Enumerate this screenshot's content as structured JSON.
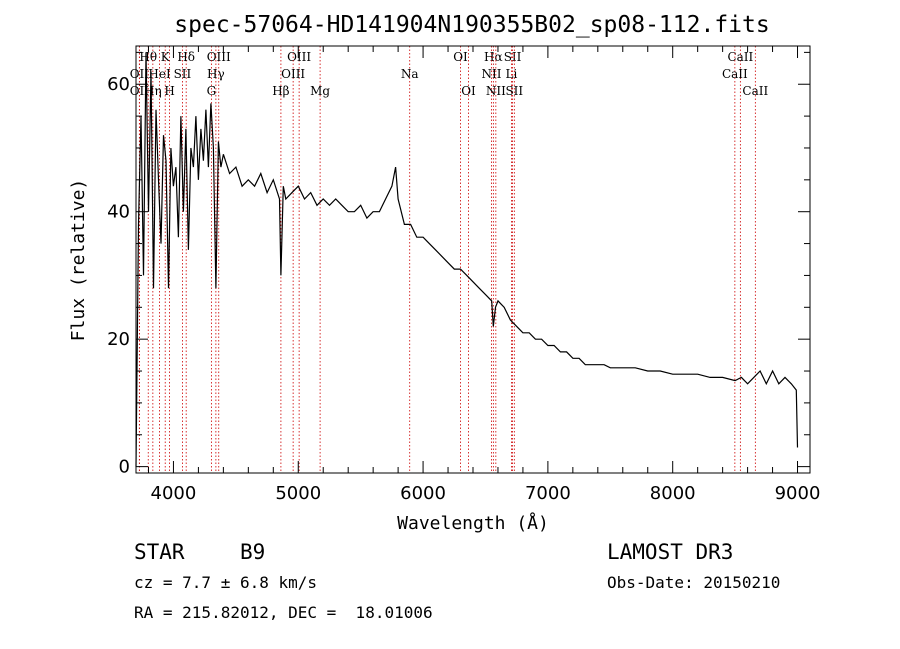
{
  "chart_data": {
    "type": "line",
    "title": "spec-57064-HD141904N190355B02_sp08-112.fits",
    "xlabel": "Wavelength (Å)",
    "ylabel": "Flux (relative)",
    "xlim": [
      3700,
      9100
    ],
    "ylim": [
      -1,
      66
    ],
    "xticks": [
      4000,
      5000,
      6000,
      7000,
      8000,
      9000
    ],
    "yticks": [
      0,
      20,
      40,
      60
    ],
    "series": [
      {
        "name": "spectrum",
        "x": [
          3700,
          3720,
          3740,
          3760,
          3780,
          3800,
          3820,
          3840,
          3860,
          3880,
          3900,
          3920,
          3940,
          3960,
          3980,
          4000,
          4020,
          4040,
          4060,
          4080,
          4100,
          4120,
          4140,
          4160,
          4180,
          4200,
          4220,
          4240,
          4260,
          4280,
          4300,
          4320,
          4340,
          4360,
          4380,
          4400,
          4450,
          4500,
          4550,
          4600,
          4650,
          4700,
          4750,
          4800,
          4850,
          4861,
          4880,
          4900,
          4950,
          5000,
          5050,
          5100,
          5150,
          5200,
          5250,
          5300,
          5350,
          5400,
          5450,
          5500,
          5550,
          5600,
          5650,
          5700,
          5750,
          5780,
          5800,
          5850,
          5900,
          5950,
          6000,
          6050,
          6100,
          6150,
          6200,
          6250,
          6300,
          6350,
          6400,
          6450,
          6500,
          6550,
          6563,
          6580,
          6600,
          6650,
          6700,
          6750,
          6800,
          6850,
          6900,
          6950,
          7000,
          7050,
          7100,
          7150,
          7200,
          7250,
          7300,
          7350,
          7400,
          7450,
          7500,
          7600,
          7700,
          7800,
          7900,
          8000,
          8100,
          8200,
          8300,
          8400,
          8500,
          8550,
          8600,
          8650,
          8700,
          8750,
          8800,
          8850,
          8900,
          8950,
          8990,
          9000
        ],
        "values": [
          0,
          38,
          55,
          30,
          65,
          40,
          62,
          28,
          56,
          45,
          35,
          52,
          48,
          28,
          50,
          44,
          47,
          36,
          55,
          40,
          53,
          34,
          50,
          47,
          55,
          45,
          53,
          48,
          56,
          47,
          57,
          50,
          28,
          51,
          47,
          49,
          46,
          47,
          44,
          45,
          44,
          46,
          43,
          45,
          42,
          30,
          44,
          42,
          43,
          44,
          42,
          43,
          41,
          42,
          41,
          42,
          41,
          40,
          40,
          41,
          39,
          40,
          40,
          42,
          44,
          47,
          42,
          38,
          38,
          36,
          36,
          35,
          34,
          33,
          32,
          31,
          31,
          30,
          29,
          28,
          27,
          26,
          22,
          25,
          26,
          25,
          23,
          22,
          21,
          21,
          20,
          20,
          19,
          19,
          18,
          18,
          17,
          17,
          16,
          16,
          16,
          16,
          15.5,
          15.5,
          15.5,
          15,
          15,
          14.5,
          14.5,
          14.5,
          14,
          14,
          13.5,
          14,
          13,
          14,
          15,
          13,
          15,
          13,
          14,
          13,
          12,
          3
        ]
      }
    ],
    "spectral_lines": [
      {
        "name": "Hθ",
        "wavelength": 3798,
        "row": 1
      },
      {
        "name": "K",
        "wavelength": 3934,
        "row": 1
      },
      {
        "name": "Hδ",
        "wavelength": 4102,
        "row": 1
      },
      {
        "name": "OIII",
        "wavelength": 4363,
        "row": 1
      },
      {
        "name": "OIII",
        "wavelength": 5007,
        "row": 1
      },
      {
        "name": "OI",
        "wavelength": 6300,
        "row": 1
      },
      {
        "name": "Hα",
        "wavelength": 6563,
        "row": 1
      },
      {
        "name": "SII",
        "wavelength": 6717,
        "row": 1
      },
      {
        "name": "CaII",
        "wavelength": 8542,
        "row": 1
      },
      {
        "name": "OII",
        "wavelength": 3727,
        "row": 2
      },
      {
        "name": "HeI",
        "wavelength": 3889,
        "row": 2
      },
      {
        "name": "SII",
        "wavelength": 4072,
        "row": 2
      },
      {
        "name": "Hγ",
        "wavelength": 4340,
        "row": 2
      },
      {
        "name": "OIII",
        "wavelength": 4959,
        "row": 2
      },
      {
        "name": "Na",
        "wavelength": 5893,
        "row": 2
      },
      {
        "name": "NII",
        "wavelength": 6548,
        "row": 2
      },
      {
        "name": "Li",
        "wavelength": 6708,
        "row": 2
      },
      {
        "name": "CaII",
        "wavelength": 8498,
        "row": 2
      },
      {
        "name": "OII",
        "wavelength": 3727,
        "row": 3
      },
      {
        "name": "Hη",
        "wavelength": 3835,
        "row": 3
      },
      {
        "name": "H",
        "wavelength": 3969,
        "row": 3
      },
      {
        "name": "G",
        "wavelength": 4304,
        "row": 3
      },
      {
        "name": "Hβ",
        "wavelength": 4861,
        "row": 3
      },
      {
        "name": "Mg",
        "wavelength": 5175,
        "row": 3
      },
      {
        "name": "OI",
        "wavelength": 6364,
        "row": 3
      },
      {
        "name": "NII",
        "wavelength": 6583,
        "row": 3
      },
      {
        "name": "SII",
        "wavelength": 6731,
        "row": 3
      },
      {
        "name": "CaII",
        "wavelength": 8662,
        "row": 3
      }
    ]
  },
  "info": {
    "object_class": "STAR",
    "subclass": "B9",
    "survey": "LAMOST DR3",
    "redshift": "cz = 7.7 ± 6.8 km/s",
    "obs_date": "Obs-Date: 20150210",
    "coords": "RA = 215.82012, DEC =  18.01006"
  }
}
